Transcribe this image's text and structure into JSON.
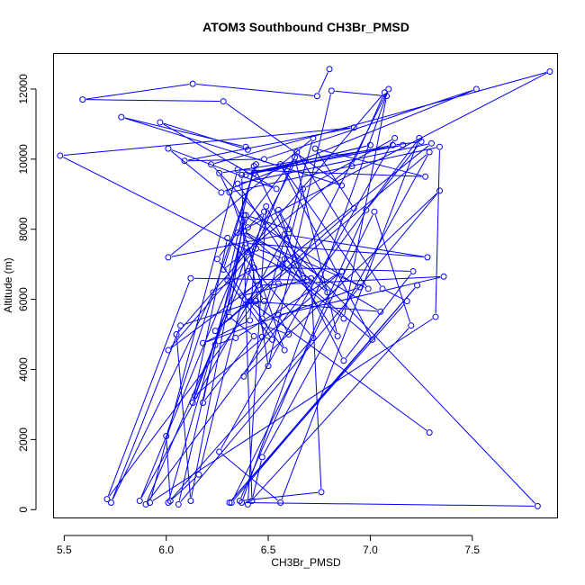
{
  "chart_data": {
    "type": "line",
    "title": "ATOM3 Southbound CH3Br_PMSD",
    "xlabel": "CH3Br_PMSD",
    "ylabel": "Altitude (m)",
    "xlim": [
      5.45,
      7.92
    ],
    "ylim": [
      -250,
      13000
    ],
    "xticks": [
      5.5,
      6.0,
      6.5,
      7.0,
      7.5
    ],
    "xtick_labels": [
      "5.5",
      "6.0",
      "6.5",
      "7.0",
      "7.5"
    ],
    "yticks": [
      0,
      2000,
      4000,
      6000,
      8000,
      10000,
      12000
    ],
    "ytick_labels": [
      "0",
      "2000",
      "4000",
      "6000",
      "8000",
      "10000",
      "12000"
    ],
    "grid": false,
    "line_color": "#0000ff",
    "marker": "open-circle",
    "series": [
      {
        "x": [
          6.8,
          6.74,
          6.13,
          5.59,
          6.28,
          6.86,
          5.78,
          6.39,
          6.4,
          5.97,
          6.54,
          6.01,
          6.27,
          7.52,
          6.48,
          6.09,
          6.92,
          5.48,
          6.67,
          6.55,
          6.79,
          6.58,
          6.44,
          6.01,
          6.57,
          6.4,
          6.48,
          6.39,
          6.45,
          7.36,
          6.55,
          6.6,
          6.48,
          6.47,
          6.52,
          6.3,
          6.43,
          6.69,
          6.12,
          5.71,
          6.44,
          6.07,
          5.73,
          6.23,
          6.43,
          6.41,
          6.18,
          6.95,
          6.38,
          6.31,
          6.43,
          6.18,
          6.24,
          6.34,
          6.86,
          6.14,
          6.4,
          6.13,
          6.3,
          6.72,
          6.01,
          6.4,
          6.48,
          6.16,
          6.02,
          6.0,
          6.44,
          6.28,
          6.91,
          7.07,
          6.05,
          6.12,
          6.38,
          6.26,
          7.16,
          6.43,
          7.0,
          6.39,
          7.11,
          7.25,
          6.98,
          6.36,
          6.76,
          6.71,
          6.37,
          7.3,
          6.35,
          6.84,
          6.63,
          6.25,
          6.58,
          6.31,
          7.34,
          7.32,
          5.92,
          6.35,
          7.27,
          6.73,
          6.92,
          6.24,
          7.29,
          6.47,
          6.42,
          6.37,
          6.63,
          6.41,
          6.5,
          6.81,
          7.08,
          6.87,
          6.57,
          7.21,
          6.87,
          6.49,
          6.4,
          7.2,
          7.02,
          6.32,
          7.23,
          6.31,
          7.18,
          7.06,
          6.64,
          5.9,
          7.24,
          6.56,
          6.26,
          7.12,
          6.67,
          6.55,
          6.47,
          6.72,
          6.01,
          6.58,
          7.28,
          6.39,
          5.87,
          6.6,
          6.39,
          6.06,
          7.34,
          6.38,
          7.09,
          6.37,
          7.82,
          6.22,
          7.88,
          6.35,
          6.99,
          6.56,
          7.01,
          6.38,
          7.05,
          6.41,
          7.29
        ],
        "y": [
          12570,
          11800,
          12150,
          11700,
          11650,
          9250,
          11200,
          10350,
          10270,
          11050,
          9150,
          10300,
          9050,
          12000,
          10000,
          9950,
          10900,
          10100,
          6600,
          8550,
          6200,
          7150,
          7450,
          4550,
          7000,
          6800,
          5950,
          5850,
          6400,
          6650,
          5550,
          5000,
          5250,
          4930,
          4850,
          6550,
          9800,
          6550,
          6600,
          300,
          5950,
          5250,
          200,
          6200,
          6900,
          5400,
          4750,
          6350,
          8400,
          5500,
          4950,
          3050,
          4700,
          4900,
          6800,
          3250,
          7350,
          3050,
          7750,
          4900,
          200,
          8050,
          8500,
          1000,
          250,
          2100,
          9850,
          6850,
          9800,
          11900,
          5000,
          250,
          8200,
          9600,
          10400,
          9600,
          10400,
          9550,
          10400,
          10500,
          8550,
          250,
          500,
          6600,
          6100,
          10450,
          9300,
          4950,
          10050,
          7150,
          4550,
          9050,
          10350,
          5500,
          200,
          9700,
          9500,
          10300,
          8600,
          5100,
          10200,
          1500,
          250,
          9550,
          9900,
          7400,
          4100,
          11950,
          11800,
          5450,
          6900,
          6800,
          4250,
          8650,
          150,
          5250,
          8500,
          200,
          6400,
          200,
          5950,
          6300,
          10200,
          150,
          10600,
          200,
          1650,
          10600,
          9150,
          6450,
          5450,
          10600,
          7200,
          7850,
          7200,
          7600,
          250,
          8000,
          8400,
          150,
          9100,
          3800,
          12000,
          200,
          100,
          9850,
          12500,
          7900,
          6300,
          9850,
          4850,
          7950,
          5650,
          5950,
          2200
        ]
      }
    ]
  }
}
